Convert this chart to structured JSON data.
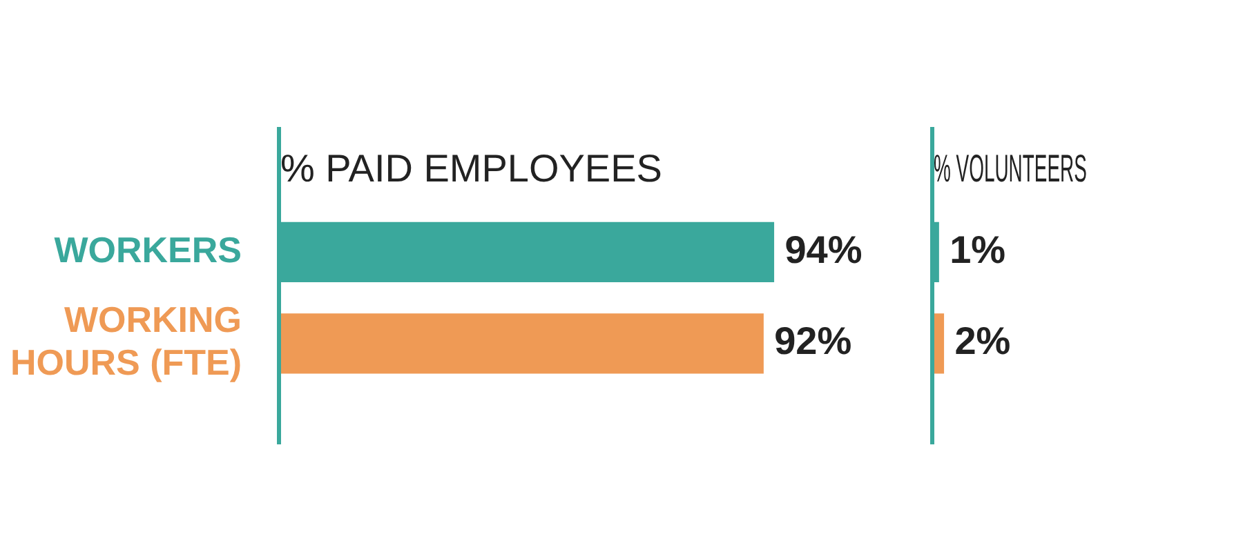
{
  "chart_data": [
    {
      "type": "bar",
      "orientation": "horizontal",
      "title": "% PAID EMPLOYEES",
      "categories": [
        "WORKERS",
        "WORKING HOURS (FTE)"
      ],
      "values": [
        94,
        92
      ],
      "colors": [
        "#3aa89c",
        "#ef9a55"
      ],
      "value_labels": [
        "94%",
        "92%"
      ]
    },
    {
      "type": "bar",
      "orientation": "horizontal",
      "title": "% VOLUNTEERS",
      "categories": [
        null,
        null
      ],
      "values": [
        1,
        2
      ],
      "colors": [
        "#3aa89c",
        "#ef9a55"
      ],
      "value_labels": [
        "1%",
        "2%"
      ],
      "tick_labels": false
    }
  ]
}
